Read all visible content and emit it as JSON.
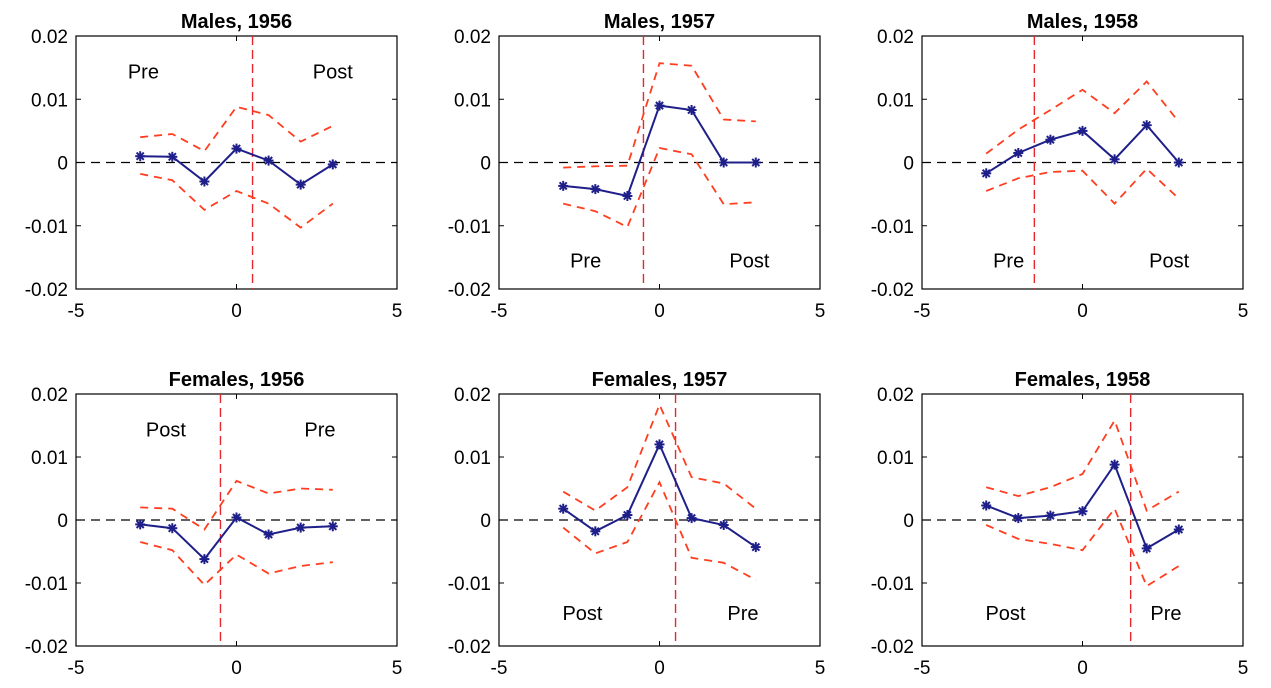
{
  "colors": {
    "estimate_line": "#1f1f8a",
    "confidence_band": "#ff3d1f",
    "cutoff_line": "#e8262e",
    "zero_line": "#000000"
  },
  "chart_data": [
    {
      "type": "line",
      "title": "Males, 1956",
      "xlim": [
        -5,
        5
      ],
      "ylim": [
        -0.02,
        0.02
      ],
      "xticks": [
        "-5",
        "0",
        "5"
      ],
      "yticks": [
        "-0.02",
        "-0.01",
        "0",
        "0.01",
        "0.02"
      ],
      "x": [
        -3,
        -2,
        -1,
        0,
        1,
        2,
        3
      ],
      "series": [
        {
          "role": "estimate",
          "values": [
            0.001,
            0.0009,
            -0.003,
            0.0022,
            0.0003,
            -0.0035,
            -0.0003
          ]
        },
        {
          "role": "upper_ci",
          "values": [
            0.004,
            0.0045,
            0.0018,
            0.0088,
            0.0075,
            0.0033,
            0.0058
          ]
        },
        {
          "role": "lower_ci",
          "values": [
            -0.0018,
            -0.0028,
            -0.0075,
            -0.0045,
            -0.0065,
            -0.0103,
            -0.0065
          ]
        }
      ],
      "cutoff_x": 0.5,
      "annotations": [
        {
          "text": "Pre",
          "x": -2.9,
          "y": 0.0144
        },
        {
          "text": "Post",
          "x": 3.0,
          "y": 0.0144
        }
      ]
    },
    {
      "type": "line",
      "title": "Males, 1957",
      "xlim": [
        -5,
        5
      ],
      "ylim": [
        -0.02,
        0.02
      ],
      "xticks": [
        "-5",
        "0",
        "5"
      ],
      "yticks": [
        "-0.02",
        "-0.01",
        "0",
        "0.01",
        "0.02"
      ],
      "x": [
        -3,
        -2,
        -1,
        0,
        1,
        2,
        3
      ],
      "series": [
        {
          "role": "estimate",
          "values": [
            -0.0037,
            -0.0042,
            -0.0053,
            0.009,
            0.0083,
            0.0,
            0.0
          ]
        },
        {
          "role": "upper_ci",
          "values": [
            -0.0008,
            -0.0006,
            -0.0005,
            0.0157,
            0.0153,
            0.0068,
            0.0065
          ]
        },
        {
          "role": "lower_ci",
          "values": [
            -0.0065,
            -0.0077,
            -0.0102,
            0.0023,
            0.0013,
            -0.0066,
            -0.0063
          ]
        }
      ],
      "cutoff_x": -0.5,
      "annotations": [
        {
          "text": "Pre",
          "x": -2.3,
          "y": -0.0155
        },
        {
          "text": "Post",
          "x": 2.8,
          "y": -0.0155
        }
      ]
    },
    {
      "type": "line",
      "title": "Males, 1958",
      "xlim": [
        -5,
        5
      ],
      "ylim": [
        -0.02,
        0.02
      ],
      "xticks": [
        "-5",
        "0",
        "5"
      ],
      "yticks": [
        "-0.02",
        "-0.01",
        "0",
        "0.01",
        "0.02"
      ],
      "x": [
        -3,
        -2,
        -1,
        0,
        1,
        2,
        3
      ],
      "series": [
        {
          "role": "estimate",
          "values": [
            -0.0017,
            0.0015,
            0.0036,
            0.005,
            0.0005,
            0.0059,
            0.0
          ]
        },
        {
          "role": "upper_ci",
          "values": [
            0.0014,
            0.0052,
            0.0083,
            0.0115,
            0.0078,
            0.0128,
            0.0064
          ]
        },
        {
          "role": "lower_ci",
          "values": [
            -0.0045,
            -0.0025,
            -0.0015,
            -0.0013,
            -0.0065,
            -0.001,
            -0.0057
          ]
        }
      ],
      "cutoff_x": -1.5,
      "annotations": [
        {
          "text": "Pre",
          "x": -2.3,
          "y": -0.0155
        },
        {
          "text": "Post",
          "x": 2.7,
          "y": -0.0155
        }
      ]
    },
    {
      "type": "line",
      "title": "Females, 1956",
      "xlim": [
        -5,
        5
      ],
      "ylim": [
        -0.02,
        0.02
      ],
      "xticks": [
        "-5",
        "0",
        "5"
      ],
      "yticks": [
        "-0.02",
        "-0.01",
        "0",
        "0.01",
        "0.02"
      ],
      "x": [
        -3,
        -2,
        -1,
        0,
        1,
        2,
        3
      ],
      "series": [
        {
          "role": "estimate",
          "values": [
            -0.0007,
            -0.0013,
            -0.0062,
            0.0004,
            -0.0023,
            -0.0012,
            -0.001
          ]
        },
        {
          "role": "upper_ci",
          "values": [
            0.002,
            0.0018,
            -0.0015,
            0.0062,
            0.0042,
            0.005,
            0.0048
          ]
        },
        {
          "role": "lower_ci",
          "values": [
            -0.0035,
            -0.0048,
            -0.0103,
            -0.0055,
            -0.0085,
            -0.0073,
            -0.0067
          ]
        }
      ],
      "cutoff_x": -0.5,
      "annotations": [
        {
          "text": "Post",
          "x": -2.2,
          "y": 0.0144
        },
        {
          "text": "Pre",
          "x": 2.6,
          "y": 0.0144
        }
      ]
    },
    {
      "type": "line",
      "title": "Females, 1957",
      "xlim": [
        -5,
        5
      ],
      "ylim": [
        -0.02,
        0.02
      ],
      "xticks": [
        "-5",
        "0",
        "5"
      ],
      "yticks": [
        "-0.02",
        "-0.01",
        "0",
        "0.01",
        "0.02"
      ],
      "x": [
        -3,
        -2,
        -1,
        0,
        1,
        2,
        3
      ],
      "series": [
        {
          "role": "estimate",
          "values": [
            0.0018,
            -0.0018,
            0.0008,
            0.012,
            0.0003,
            -0.0008,
            -0.0043
          ]
        },
        {
          "role": "upper_ci",
          "values": [
            0.0045,
            0.0015,
            0.0052,
            0.0183,
            0.0068,
            0.0058,
            0.0018
          ]
        },
        {
          "role": "lower_ci",
          "values": [
            -0.0012,
            -0.0053,
            -0.0035,
            0.006,
            -0.006,
            -0.0068,
            -0.0095
          ]
        }
      ],
      "cutoff_x": 0.5,
      "annotations": [
        {
          "text": "Post",
          "x": -2.4,
          "y": -0.0148
        },
        {
          "text": "Pre",
          "x": 2.6,
          "y": -0.0148
        }
      ]
    },
    {
      "type": "line",
      "title": "Females, 1958",
      "xlim": [
        -5,
        5
      ],
      "ylim": [
        -0.02,
        0.02
      ],
      "xticks": [
        "-5",
        "0",
        "5"
      ],
      "yticks": [
        "-0.02",
        "-0.01",
        "0",
        "0.01",
        "0.02"
      ],
      "x": [
        -3,
        -2,
        -1,
        0,
        1,
        2,
        3
      ],
      "series": [
        {
          "role": "estimate",
          "values": [
            0.0023,
            0.0003,
            0.0007,
            0.0014,
            0.0088,
            -0.0045,
            -0.0015
          ]
        },
        {
          "role": "upper_ci",
          "values": [
            0.0052,
            0.0038,
            0.0052,
            0.0073,
            0.0158,
            0.0015,
            0.0045
          ]
        },
        {
          "role": "lower_ci",
          "values": [
            -0.0008,
            -0.003,
            -0.0038,
            -0.0048,
            0.0018,
            -0.0105,
            -0.0073
          ]
        }
      ],
      "cutoff_x": 1.5,
      "annotations": [
        {
          "text": "Post",
          "x": -2.4,
          "y": -0.0148
        },
        {
          "text": "Pre",
          "x": 2.6,
          "y": -0.0148
        }
      ]
    }
  ]
}
